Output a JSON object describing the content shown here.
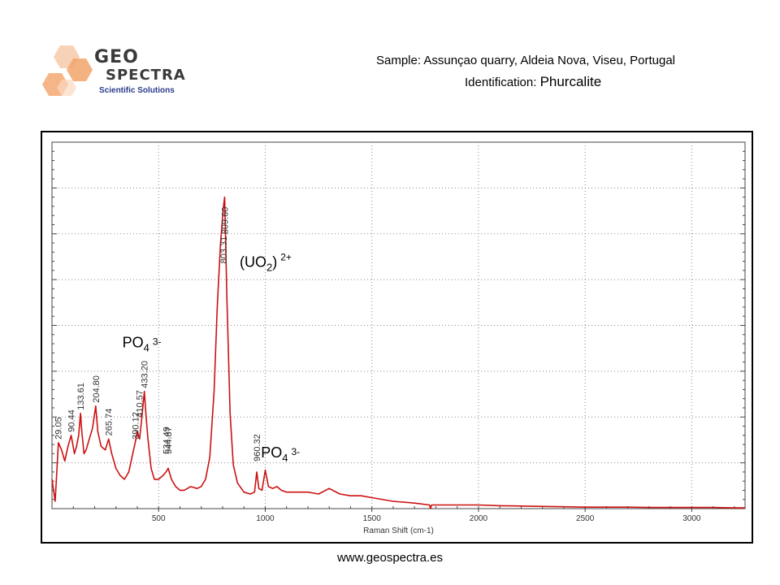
{
  "header": {
    "logo_geo": "GEO",
    "logo_spectra": "SPECTRA",
    "logo_subtitle": "Scientific Solutions",
    "sample": "Sample: Assunçao quarry, Aldeia Nova, Viseu, Portugal",
    "identification_prefix": "Identification: ",
    "identification_name": "Phurcalite"
  },
  "footer": {
    "website": "www.geospectra.es"
  },
  "colors": {
    "spectrum": "#cc1111",
    "grid": "#888888",
    "logo_orange": "#f4a26a",
    "logo_text": "#3a3a3a"
  },
  "chart_data": {
    "type": "line",
    "xlabel": "Raman Shift (cm-1)",
    "ylabel": "",
    "xlim": [
      0,
      3250
    ],
    "ylim": [
      0,
      1
    ],
    "x_ticks": [
      500,
      1000,
      1500,
      2000,
      2500,
      3000
    ],
    "grid": true,
    "y_tick_labels_shown": false,
    "series": [
      {
        "x": [
          0,
          15,
          30,
          45,
          60,
          75,
          90,
          105,
          115,
          125,
          133.61,
          140,
          150,
          160,
          175,
          190,
          204.8,
          215,
          230,
          250,
          265.74,
          280,
          300,
          320,
          340,
          360,
          375,
          390.12,
          400,
          410.57,
          420,
          433.2,
          440,
          450,
          465,
          480,
          500,
          520,
          534.49,
          544.87,
          560,
          580,
          600,
          620,
          650,
          680,
          700,
          720,
          740,
          760,
          775,
          790,
          803.31,
          809.6,
          820,
          835,
          850,
          870,
          900,
          930,
          950,
          960.32,
          970,
          985,
          1000,
          1015,
          1035,
          1055,
          1075,
          1100,
          1150,
          1200,
          1250,
          1300,
          1350,
          1400,
          1450,
          1500,
          1600,
          1700,
          1770,
          1775,
          1780,
          1800,
          1900,
          2000,
          2100,
          2200,
          2300,
          2400,
          2500,
          2600,
          2700,
          2800,
          2900,
          3000,
          3100,
          3200,
          3250
        ],
        "y": [
          0.08,
          0.02,
          0.18,
          0.16,
          0.13,
          0.17,
          0.2,
          0.15,
          0.17,
          0.2,
          0.26,
          0.21,
          0.15,
          0.16,
          0.19,
          0.22,
          0.28,
          0.21,
          0.17,
          0.16,
          0.19,
          0.15,
          0.11,
          0.09,
          0.08,
          0.1,
          0.14,
          0.18,
          0.21,
          0.19,
          0.24,
          0.32,
          0.26,
          0.19,
          0.11,
          0.08,
          0.08,
          0.09,
          0.1,
          0.11,
          0.08,
          0.06,
          0.05,
          0.05,
          0.06,
          0.055,
          0.06,
          0.08,
          0.14,
          0.32,
          0.55,
          0.72,
          0.82,
          0.85,
          0.58,
          0.26,
          0.12,
          0.07,
          0.045,
          0.04,
          0.045,
          0.1,
          0.055,
          0.05,
          0.105,
          0.06,
          0.055,
          0.06,
          0.05,
          0.045,
          0.045,
          0.045,
          0.04,
          0.055,
          0.04,
          0.035,
          0.035,
          0.03,
          0.02,
          0.015,
          0.01,
          0.0,
          0.01,
          0.01,
          0.01,
          0.01,
          0.008,
          0.007,
          0.006,
          0.005,
          0.004,
          0.004,
          0.004,
          0.003,
          0.003,
          0.003,
          0.003,
          0.002,
          0.002
        ]
      }
    ],
    "peak_labels": [
      {
        "x": 29.05,
        "y": 0.18,
        "label": "29.05"
      },
      {
        "x": 90.44,
        "y": 0.2,
        "label": "90.44"
      },
      {
        "x": 133.61,
        "y": 0.26,
        "label": "133.61"
      },
      {
        "x": 204.8,
        "y": 0.28,
        "label": "204.80"
      },
      {
        "x": 265.74,
        "y": 0.19,
        "label": "265.74"
      },
      {
        "x": 390.12,
        "y": 0.18,
        "label": "390.12"
      },
      {
        "x": 410.57,
        "y": 0.24,
        "label": "410.57"
      },
      {
        "x": 433.2,
        "y": 0.32,
        "label": "433.20"
      },
      {
        "x": 534.49,
        "y": 0.14,
        "label": "534.49"
      },
      {
        "x": 544.87,
        "y": 0.14,
        "label": "544.87"
      },
      {
        "x": 803.31,
        "y": 0.66,
        "label": "803.31"
      },
      {
        "x": 809.6,
        "y": 0.74,
        "label": "809.60"
      },
      {
        "x": 960.32,
        "y": 0.12,
        "label": "960.32"
      }
    ],
    "annotations": [
      {
        "text": "(UO",
        "sub": "2",
        "after": ")",
        "sup": "2+",
        "x": 880,
        "y": 0.66
      },
      {
        "text": "PO",
        "sub": "4",
        "after": "",
        "sup": "3-",
        "x": 330,
        "y": 0.44
      },
      {
        "text": "PO",
        "sub": "4",
        "after": "",
        "sup": "3-",
        "x": 980,
        "y": 0.14
      }
    ]
  }
}
